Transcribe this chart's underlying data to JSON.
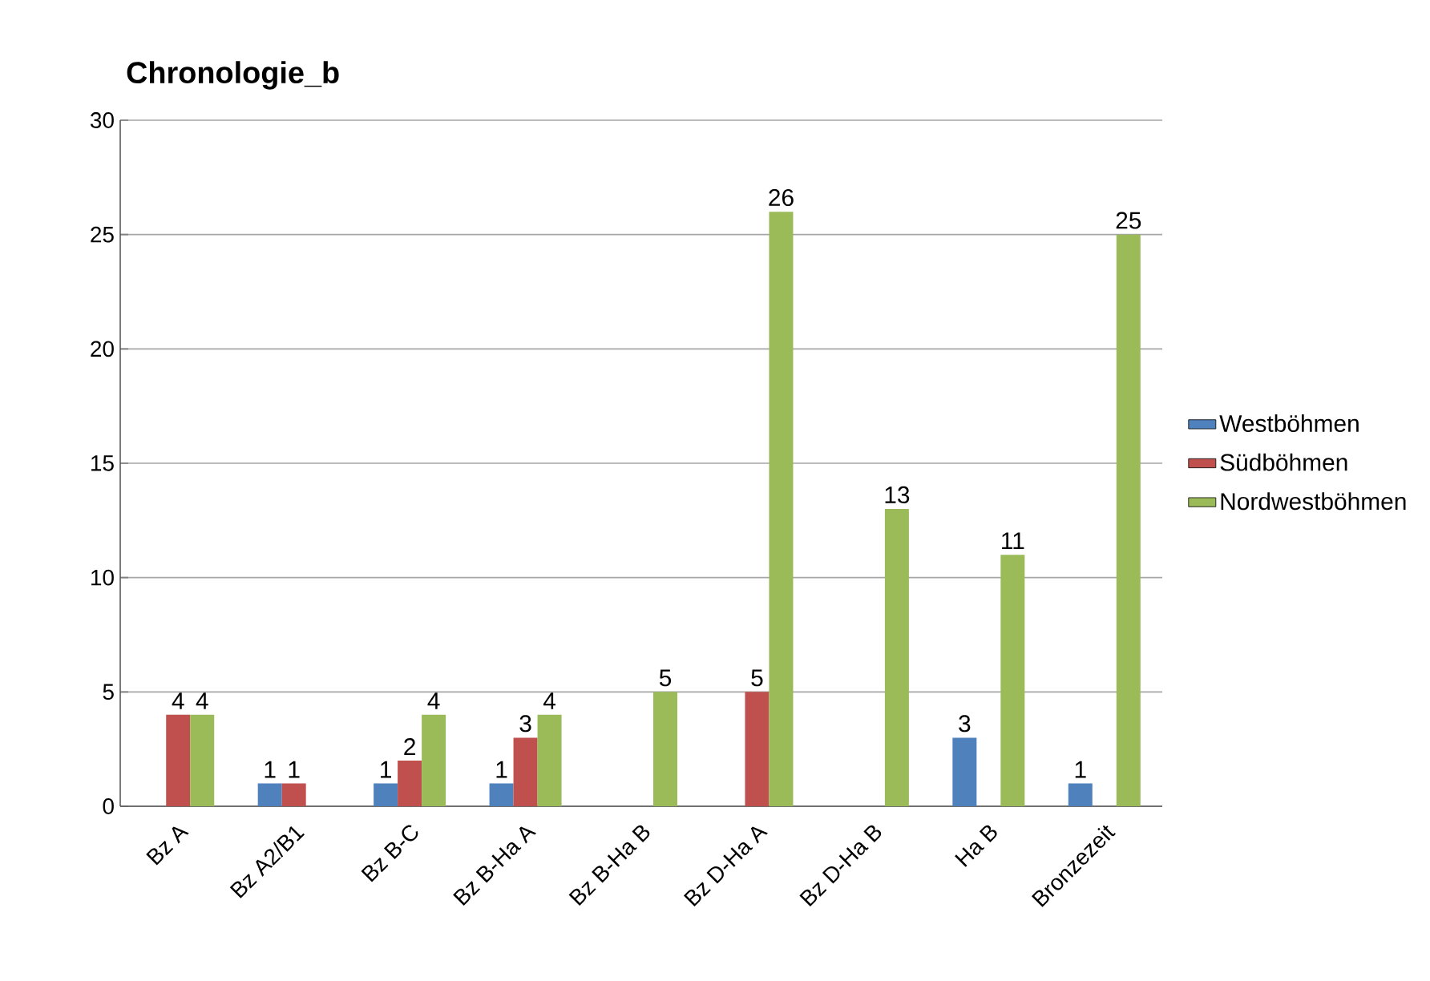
{
  "chart_data": {
    "type": "bar",
    "title": "Chronologie_b",
    "categories": [
      "Bz A",
      "Bz A2/B1",
      "Bz B-C",
      "Bz B-Ha A",
      "Bz B-Ha B",
      "Bz D-Ha A",
      "Bz D-Ha B",
      "Ha B",
      "Bronzezeit"
    ],
    "series": [
      {
        "name": "Westböhmen",
        "color": "#4f81bd",
        "values": [
          null,
          1,
          1,
          1,
          null,
          null,
          null,
          3,
          1
        ]
      },
      {
        "name": "Südböhmen",
        "color": "#c0504d",
        "values": [
          4,
          1,
          2,
          3,
          null,
          5,
          null,
          null,
          null
        ]
      },
      {
        "name": "Nordwestböhmen",
        "color": "#9bbb59",
        "values": [
          4,
          null,
          4,
          4,
          5,
          26,
          13,
          11,
          25
        ]
      }
    ],
    "ylim": [
      0,
      30
    ],
    "yticks": [
      0,
      5,
      10,
      15,
      20,
      25,
      30
    ],
    "grid": "y",
    "legend": "right",
    "data_labels": true
  }
}
